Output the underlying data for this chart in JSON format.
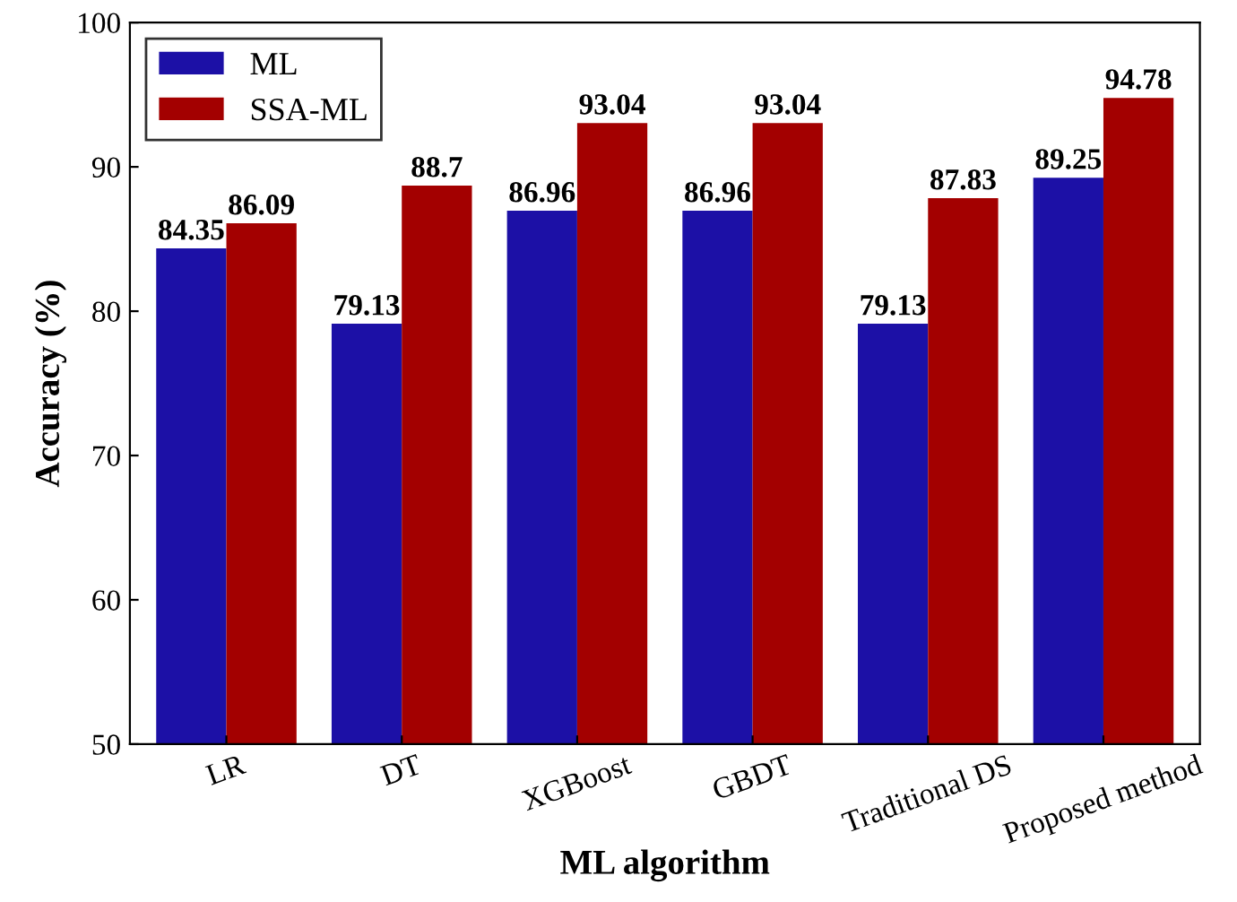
{
  "chart_data": {
    "type": "bar",
    "xlabel": "ML algorithm",
    "ylabel": "Accuracy (%)",
    "categories": [
      "LR",
      "DT",
      "XGBoost",
      "GBDT",
      "Traditional DS",
      "Proposed method"
    ],
    "series": [
      {
        "name": "ML",
        "color": "#1c10a6",
        "values": [
          84.35,
          79.13,
          86.96,
          86.96,
          79.13,
          89.25
        ]
      },
      {
        "name": "SSA-ML",
        "color": "#a30000",
        "values": [
          86.09,
          88.7,
          93.04,
          93.04,
          87.83,
          94.78
        ]
      }
    ],
    "ylim": [
      50,
      100
    ],
    "yticks": [
      50,
      60,
      70,
      80,
      90,
      100
    ],
    "data_labels": true,
    "legend": "top left",
    "grid": false
  }
}
